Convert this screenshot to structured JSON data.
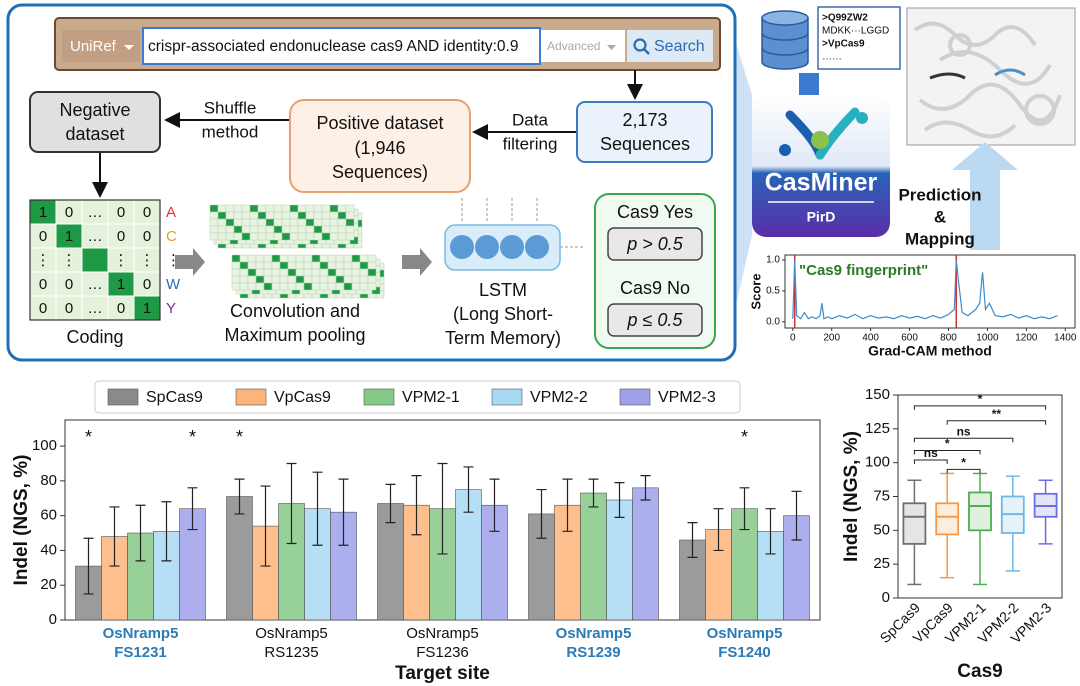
{
  "search": {
    "database": "UniRef",
    "query": "crispr-associated endonuclease cas9 AND identity:0.9",
    "advanced": "Advanced",
    "button": "Search"
  },
  "nodes": {
    "negative": [
      "Negative",
      "dataset"
    ],
    "positive": [
      "Positive dataset",
      "(1,946",
      "Sequences)"
    ],
    "sequences": [
      "2,173",
      "Sequences"
    ]
  },
  "edges": {
    "shuffle": [
      "Shuffle",
      "method"
    ],
    "filtering": [
      "Data",
      "filtering"
    ]
  },
  "coding": {
    "matrix": [
      [
        "1",
        "0",
        "…",
        "0",
        "0"
      ],
      [
        "0",
        "1",
        "…",
        "0",
        "0"
      ],
      [
        "⋮",
        "⋮",
        "",
        "⋮",
        "⋮"
      ],
      [
        "0",
        "0",
        "…",
        "1",
        "0"
      ],
      [
        "0",
        "0",
        "…",
        "0",
        "1"
      ]
    ],
    "letters": [
      "A",
      "C",
      "⋮",
      "W",
      "Y"
    ],
    "label": "Coding"
  },
  "convolution": [
    "Convolution and",
    "Maximum pooling"
  ],
  "lstm": [
    "LSTM",
    "(Long Short-",
    "Term Memory)"
  ],
  "output": {
    "yes": "Cas9 Yes",
    "yes_rule": "p > 0.5",
    "no": "Cas9 No",
    "no_rule": "p ≤ 0.5"
  },
  "sequence_box": [
    ">Q99ZW2",
    "MDKK···LGGD",
    ">VpCas9",
    "……"
  ],
  "logo": {
    "name": "CasMiner",
    "sub": "PirD"
  },
  "prediction": [
    "Prediction",
    "&",
    "Mapping"
  ],
  "chart_data": [
    {
      "type": "bar",
      "ylabel": "Indel (NGS, %)",
      "xlabel": "Target site",
      "categories": [
        [
          "OsNramp5",
          "FS1231"
        ],
        [
          "OsNramp5",
          "RS1235"
        ],
        [
          "OsNramp5",
          "FS1236"
        ],
        [
          "OsNramp5",
          "RS1239"
        ],
        [
          "OsNramp5",
          "FS1240"
        ]
      ],
      "highlighted": [
        true,
        false,
        false,
        true,
        true
      ],
      "highlight_color": "#2b7bb5",
      "series": [
        {
          "name": "SpCas9",
          "color": "#8a8a8a",
          "values": [
            31,
            71,
            67,
            61,
            46
          ],
          "errors": [
            16,
            10,
            11,
            14,
            10
          ]
        },
        {
          "name": "VpCas9",
          "color": "#fdb47a",
          "values": [
            48,
            54,
            66,
            66,
            52
          ],
          "errors": [
            17,
            23,
            17,
            15,
            12
          ]
        },
        {
          "name": "VPM2-1",
          "color": "#86c986",
          "values": [
            50,
            67,
            64,
            73,
            64
          ],
          "errors": [
            16,
            23,
            26,
            8,
            12
          ]
        },
        {
          "name": "VPM2-2",
          "color": "#a9d8f3",
          "values": [
            51,
            64,
            75,
            69,
            51
          ],
          "errors": [
            17,
            21,
            13,
            10,
            13
          ]
        },
        {
          "name": "VPM2-3",
          "color": "#9ea0ea",
          "values": [
            64,
            62,
            66,
            76,
            60
          ],
          "errors": [
            12,
            19,
            15,
            7,
            14
          ]
        }
      ],
      "annotations": [
        {
          "text": "*",
          "category": 0,
          "series": 0
        },
        {
          "text": "*",
          "category": 0,
          "series": 4
        },
        {
          "text": "*",
          "category": 1,
          "series": 0
        },
        {
          "text": "*",
          "category": 4,
          "series": 2
        }
      ],
      "ylim": [
        0,
        115
      ],
      "yticks": [
        0,
        20,
        40,
        60,
        80,
        100
      ],
      "legend": "top"
    },
    {
      "type": "box",
      "ylabel": "Indel (NGS, %)",
      "xlabel": "Cas9",
      "boxes": [
        {
          "name": "SpCas9",
          "color": "#707070",
          "whisker_low": 10,
          "q1": 40,
          "median": 60,
          "q3": 70,
          "whisker_high": 87
        },
        {
          "name": "VpCas9",
          "color": "#f59a4a",
          "whisker_low": 15,
          "q1": 47,
          "median": 60,
          "q3": 70,
          "whisker_high": 92
        },
        {
          "name": "VPM2-1",
          "color": "#4fae4f",
          "whisker_low": 10,
          "q1": 50,
          "median": 68,
          "q3": 78,
          "whisker_high": 92
        },
        {
          "name": "VPM2-2",
          "color": "#6fb8e6",
          "whisker_low": 20,
          "q1": 48,
          "median": 62,
          "q3": 75,
          "whisker_high": 90
        },
        {
          "name": "VPM2-3",
          "color": "#6a6ee0",
          "whisker_low": 40,
          "q1": 60,
          "median": 68,
          "q3": 77,
          "whisker_high": 87
        }
      ],
      "comparisons": [
        {
          "from": 0,
          "to": 1,
          "label": "ns",
          "y": 102
        },
        {
          "from": 1,
          "to": 2,
          "label": "*",
          "y": 95
        },
        {
          "from": 0,
          "to": 2,
          "label": "*",
          "y": 109
        },
        {
          "from": 0,
          "to": 3,
          "label": "ns",
          "y": 118
        },
        {
          "from": 1,
          "to": 4,
          "label": "**",
          "y": 131
        },
        {
          "from": 0,
          "to": 4,
          "label": "*",
          "y": 142
        }
      ],
      "ylim": [
        0,
        150
      ],
      "yticks": [
        0,
        25,
        50,
        75,
        100,
        125,
        150
      ]
    },
    {
      "type": "line",
      "ylabel": "Score",
      "xlabel": "Grad-CAM method",
      "annotation": "\"Cas9 fingerprint\"",
      "color": "#3d8cc8",
      "marker_color": "#d03030",
      "markers": [
        10,
        840
      ],
      "x": [
        0,
        10,
        20,
        40,
        60,
        80,
        100,
        120,
        140,
        150,
        160,
        180,
        200,
        240,
        280,
        320,
        360,
        400,
        440,
        480,
        520,
        560,
        600,
        640,
        680,
        720,
        760,
        800,
        830,
        840,
        850,
        870,
        900,
        940,
        960,
        975,
        990,
        1010,
        1040,
        1080,
        1120,
        1160,
        1200,
        1240,
        1280,
        1320,
        1360
      ],
      "values": [
        0.05,
        1.0,
        0.1,
        0.05,
        0.15,
        0.05,
        0.08,
        0.05,
        0.1,
        0.3,
        0.05,
        0.08,
        0.05,
        0.1,
        0.06,
        0.12,
        0.05,
        0.1,
        0.06,
        0.08,
        0.05,
        0.1,
        0.06,
        0.09,
        0.05,
        0.1,
        0.06,
        0.12,
        0.2,
        1.0,
        0.7,
        0.15,
        0.1,
        0.2,
        0.3,
        0.8,
        0.2,
        0.3,
        0.1,
        0.08,
        0.12,
        0.06,
        0.1,
        0.05,
        0.08,
        0.05,
        0.1
      ],
      "xlim": [
        -40,
        1450
      ],
      "ylim": [
        -0.1,
        1.08
      ],
      "xticks": [
        0,
        200,
        400,
        600,
        800,
        1000,
        1200,
        1400
      ],
      "yticks": [
        {
          "value": 0,
          "label": "0.0"
        },
        {
          "value": 0.5,
          "label": "0.5"
        },
        {
          "value": 1,
          "label": "1.0"
        }
      ]
    }
  ]
}
